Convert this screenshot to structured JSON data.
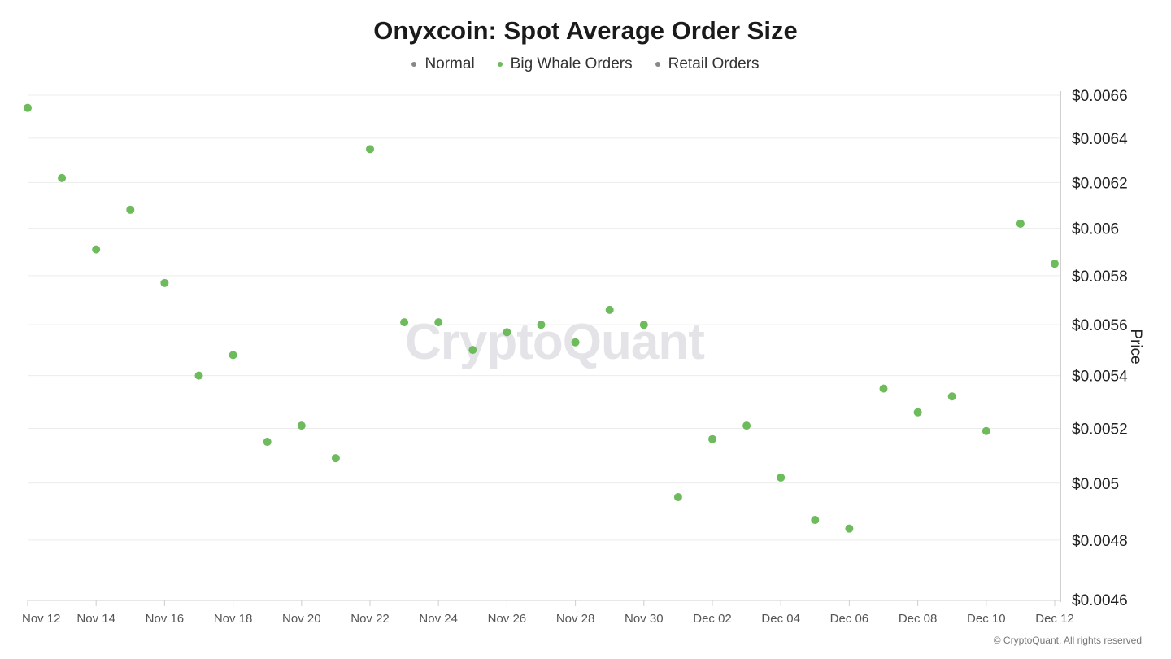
{
  "chart_data": {
    "type": "scatter",
    "title": "Onyxcoin: Spot Average Order Size",
    "ylabel": "Price",
    "legend": [
      {
        "name": "Normal",
        "color": "#888888"
      },
      {
        "name": "Big Whale Orders",
        "color": "#6dbb5c"
      },
      {
        "name": "Retail Orders",
        "color": "#888888"
      }
    ],
    "x_tick_labels": [
      "Nov 12",
      "Nov 14",
      "Nov 16",
      "Nov 18",
      "Nov 20",
      "Nov 22",
      "Nov 24",
      "Nov 26",
      "Nov 28",
      "Nov 30",
      "Dec 02",
      "Dec 04",
      "Dec 06",
      "Dec 08",
      "Dec 10",
      "Dec 12"
    ],
    "y_tick_labels": [
      "$0.0066",
      "$0.0064",
      "$0.0062",
      "$0.006",
      "$0.0058",
      "$0.0056",
      "$0.0054",
      "$0.0052",
      "$0.005",
      "$0.0048",
      "$0.0046"
    ],
    "y_ticks": [
      0.0066,
      0.0064,
      0.0062,
      0.006,
      0.0058,
      0.0056,
      0.0054,
      0.0052,
      0.005,
      0.0048,
      0.0046
    ],
    "ylim": [
      0.0046,
      0.0066
    ],
    "y_scale": "log",
    "grid": true,
    "series": [
      {
        "name": "Big Whale Orders",
        "color": "#6dbb5c",
        "x": [
          "Nov 12",
          "Nov 13",
          "Nov 14",
          "Nov 15",
          "Nov 16",
          "Nov 17",
          "Nov 18",
          "Nov 19",
          "Nov 20",
          "Nov 21",
          "Nov 22",
          "Nov 23",
          "Nov 24",
          "Nov 25",
          "Nov 26",
          "Nov 27",
          "Nov 28",
          "Nov 29",
          "Nov 30",
          "Dec 01",
          "Dec 02",
          "Dec 03",
          "Dec 04",
          "Dec 05",
          "Dec 06",
          "Dec 07",
          "Dec 08",
          "Dec 09",
          "Dec 10",
          "Dec 11",
          "Dec 12"
        ],
        "values": [
          0.00654,
          0.00622,
          0.00591,
          0.00608,
          0.00577,
          0.0054,
          0.00548,
          0.00515,
          0.00521,
          0.00509,
          0.00635,
          0.00561,
          0.00561,
          0.0055,
          0.00557,
          0.0056,
          0.00553,
          0.00566,
          0.0056,
          0.00495,
          0.00516,
          0.00521,
          0.00502,
          0.00487,
          0.00484,
          0.00535,
          0.00526,
          0.00532,
          0.00519,
          0.00602,
          0.00585
        ]
      }
    ],
    "watermark": "CryptoQuant",
    "copyright": "© CryptoQuant. All rights reserved"
  }
}
